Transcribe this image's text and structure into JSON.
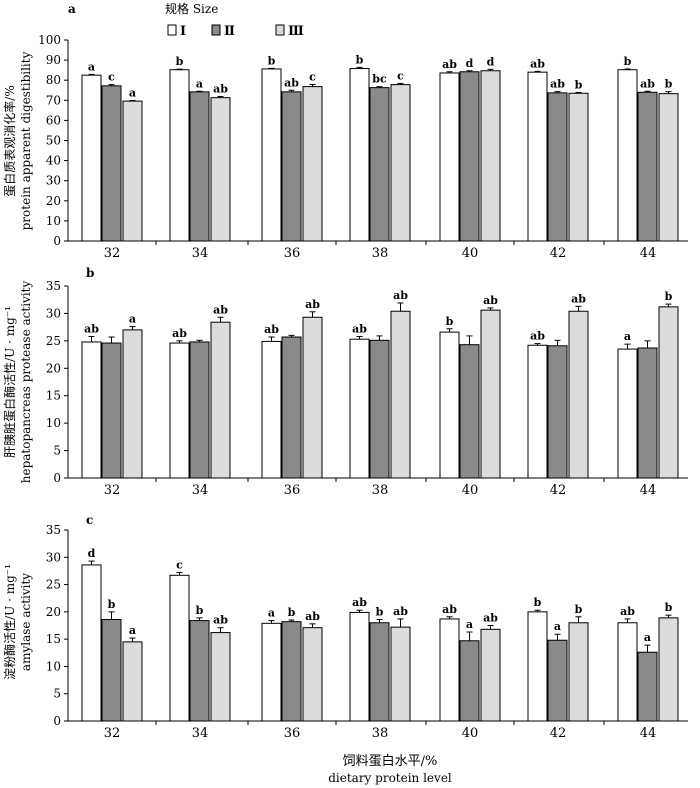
{
  "legend": {
    "title": "规格 Size",
    "items": [
      {
        "label": "Ⅰ",
        "color": "#ffffff"
      },
      {
        "label": "Ⅱ",
        "color": "#8a8a8a"
      },
      {
        "label": "Ⅲ",
        "color": "#dcdcdc"
      }
    ]
  },
  "x_axis": {
    "title_cn": "饲料蛋白水平/%",
    "title_en": "dietary protein level"
  },
  "chart_data": [
    {
      "type": "bar",
      "panel": "a",
      "ylabel_cn": "蛋白质表观消化率/%",
      "ylabel_en": "protein apparent digestibility",
      "ylim": [
        0,
        100
      ],
      "ytick_step": 10,
      "categories": [
        "32",
        "34",
        "36",
        "38",
        "40",
        "42",
        "44"
      ],
      "series": [
        {
          "name": "Ⅰ",
          "color": "#ffffff",
          "values": [
            82.5,
            85.2,
            85.6,
            85.8,
            83.6,
            84.0,
            85.2
          ],
          "errors": [
            0.4,
            0.3,
            0.3,
            0.6,
            0.6,
            0.4,
            0.4
          ],
          "labels": [
            "a",
            "b",
            "b",
            "b",
            "ab",
            "ab",
            "b"
          ]
        },
        {
          "name": "Ⅱ",
          "color": "#8a8a8a",
          "values": [
            77.2,
            74.2,
            74.2,
            76.3,
            84.2,
            73.7,
            74.0
          ],
          "errors": [
            0.6,
            0.3,
            0.8,
            0.5,
            0.5,
            0.6,
            0.5
          ],
          "labels": [
            "c",
            "a",
            "ab",
            "bc",
            "d",
            "ab",
            "ab"
          ]
        },
        {
          "name": "Ⅲ",
          "color": "#dcdcdc",
          "values": [
            69.6,
            71.3,
            76.8,
            77.8,
            84.7,
            73.5,
            73.3
          ],
          "errors": [
            0.3,
            0.6,
            1.1,
            0.6,
            0.7,
            0.4,
            1.0
          ],
          "labels": [
            "a",
            "ab",
            "c",
            "c",
            "d",
            "b",
            "b"
          ]
        }
      ]
    },
    {
      "type": "bar",
      "panel": "b",
      "ylabel_cn": "肝胰脏蛋白酶活性/U · mg⁻¹",
      "ylabel_en": "hepatopancreas protease activity",
      "ylim": [
        0,
        35
      ],
      "ytick_step": 5,
      "categories": [
        "32",
        "34",
        "36",
        "38",
        "40",
        "42",
        "44"
      ],
      "series": [
        {
          "name": "Ⅰ",
          "color": "#ffffff",
          "values": [
            24.8,
            24.6,
            24.9,
            25.3,
            26.6,
            24.2,
            23.5
          ],
          "errors": [
            1.0,
            0.4,
            0.8,
            0.5,
            0.6,
            0.3,
            0.9
          ],
          "labels": [
            "ab",
            "ab",
            "ab",
            "ab",
            "b",
            "ab",
            "a"
          ]
        },
        {
          "name": "Ⅱ",
          "color": "#8a8a8a",
          "values": [
            24.6,
            24.8,
            25.7,
            25.1,
            24.3,
            24.1,
            23.7
          ],
          "errors": [
            1.1,
            0.3,
            0.3,
            0.8,
            1.6,
            1.0,
            1.3
          ],
          "labels": [
            "",
            "",
            "",
            "",
            "",
            "",
            ""
          ]
        },
        {
          "name": "Ⅲ",
          "color": "#dcdcdc",
          "values": [
            27.0,
            28.4,
            29.3,
            30.4,
            30.6,
            30.4,
            31.2
          ],
          "errors": [
            0.6,
            0.9,
            1.0,
            1.5,
            0.4,
            0.9,
            0.5
          ],
          "labels": [
            "a",
            "ab",
            "ab",
            "ab",
            "ab",
            "ab",
            "b"
          ]
        }
      ]
    },
    {
      "type": "bar",
      "panel": "c",
      "ylabel_cn": "淀粉酶活性/U · mg⁻¹",
      "ylabel_en": "amylase activity",
      "ylim": [
        0,
        35
      ],
      "ytick_step": 5,
      "categories": [
        "32",
        "34",
        "36",
        "38",
        "40",
        "42",
        "44"
      ],
      "series": [
        {
          "name": "Ⅰ",
          "color": "#ffffff",
          "values": [
            28.6,
            26.7,
            17.9,
            19.9,
            18.7,
            20.0,
            18.0
          ],
          "errors": [
            0.7,
            0.5,
            0.5,
            0.4,
            0.4,
            0.3,
            0.7
          ],
          "labels": [
            "d",
            "c",
            "a",
            "ab",
            "ab",
            "b",
            "ab"
          ]
        },
        {
          "name": "Ⅱ",
          "color": "#8a8a8a",
          "values": [
            18.6,
            18.4,
            18.2,
            18.0,
            14.7,
            14.8,
            12.6
          ],
          "errors": [
            1.4,
            0.5,
            0.3,
            0.6,
            1.6,
            1.1,
            1.3
          ],
          "labels": [
            "b",
            "b",
            "b",
            "b",
            "a",
            "a",
            "a"
          ]
        },
        {
          "name": "Ⅲ",
          "color": "#dcdcdc",
          "values": [
            14.5,
            16.2,
            17.1,
            17.2,
            16.8,
            18.0,
            18.9
          ],
          "errors": [
            0.7,
            0.9,
            0.7,
            1.5,
            0.7,
            1.1,
            0.5
          ],
          "labels": [
            "a",
            "ab",
            "ab",
            "ab",
            "ab",
            "b",
            "b"
          ]
        }
      ]
    }
  ]
}
